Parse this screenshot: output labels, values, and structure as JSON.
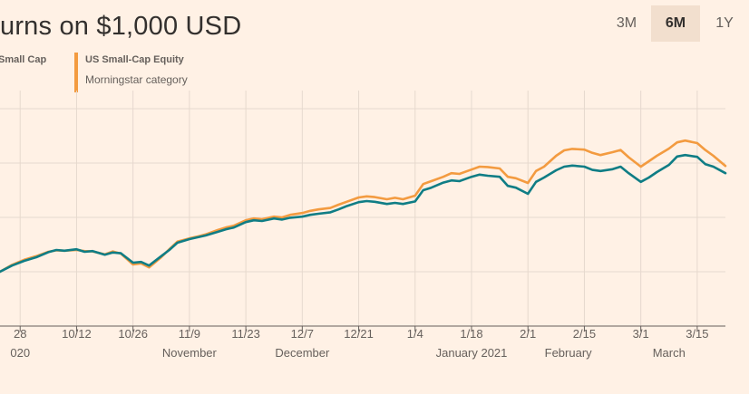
{
  "title": "urns on $1,000 USD",
  "legend": [
    {
      "name": "Small Cap",
      "sub": "",
      "color": "#0f7d85"
    },
    {
      "name": "US Small-Cap Equity",
      "sub": "Morningstar category",
      "color": "#f39b40"
    }
  ],
  "range_tabs": [
    {
      "label": "3M",
      "active": false
    },
    {
      "label": "6M",
      "active": true
    },
    {
      "label": "1Y",
      "active": false
    }
  ],
  "chart_data": {
    "type": "line",
    "x_tick_labels": [
      "28",
      "10/12",
      "10/26",
      "11/9",
      "11/23",
      "12/7",
      "12/21",
      "1/4",
      "1/18",
      "2/1",
      "2/15",
      "3/1",
      "3/15"
    ],
    "x_tick_dates": [
      "2020-09-28",
      "2020-10-12",
      "2020-10-26",
      "2020-11-09",
      "2020-11-23",
      "2020-12-07",
      "2020-12-21",
      "2021-01-04",
      "2021-01-18",
      "2021-02-01",
      "2021-02-15",
      "2021-03-01",
      "2021-03-15"
    ],
    "month_labels": [
      {
        "label": "020",
        "date": "2020-09-28"
      },
      {
        "label": "November",
        "date": "2020-11-09"
      },
      {
        "label": "December",
        "date": "2020-12-07"
      },
      {
        "label": "January 2021",
        "date": "2021-01-18"
      },
      {
        "label": "February",
        "date": "2021-02-11"
      },
      {
        "label": "March",
        "date": "2021-03-08"
      }
    ],
    "x_range": [
      "2020-09-23",
      "2021-03-22"
    ],
    "y_range": [
      850,
      1500
    ],
    "y_gridlines": [
      1000,
      1150,
      1300,
      1450
    ],
    "series": [
      {
        "name": "Small Cap",
        "color": "#0f7d85",
        "points": [
          [
            "2020-09-23",
            1000
          ],
          [
            "2020-09-26",
            1017
          ],
          [
            "2020-09-29",
            1030
          ],
          [
            "2020-10-02",
            1040
          ],
          [
            "2020-10-05",
            1054
          ],
          [
            "2020-10-07",
            1060
          ],
          [
            "2020-10-09",
            1058
          ],
          [
            "2020-10-12",
            1062
          ],
          [
            "2020-10-14",
            1055
          ],
          [
            "2020-10-16",
            1057
          ],
          [
            "2020-10-19",
            1047
          ],
          [
            "2020-10-21",
            1053
          ],
          [
            "2020-10-23",
            1051
          ],
          [
            "2020-10-26",
            1025
          ],
          [
            "2020-10-28",
            1027
          ],
          [
            "2020-10-30",
            1017
          ],
          [
            "2020-11-02",
            1043
          ],
          [
            "2020-11-04",
            1060
          ],
          [
            "2020-11-06",
            1080
          ],
          [
            "2020-11-09",
            1090
          ],
          [
            "2020-11-11",
            1095
          ],
          [
            "2020-11-13",
            1100
          ],
          [
            "2020-11-16",
            1110
          ],
          [
            "2020-11-18",
            1117
          ],
          [
            "2020-11-20",
            1122
          ],
          [
            "2020-11-23",
            1137
          ],
          [
            "2020-11-25",
            1142
          ],
          [
            "2020-11-27",
            1140
          ],
          [
            "2020-11-30",
            1147
          ],
          [
            "2020-12-02",
            1144
          ],
          [
            "2020-12-04",
            1149
          ],
          [
            "2020-12-07",
            1152
          ],
          [
            "2020-12-09",
            1157
          ],
          [
            "2020-12-11",
            1160
          ],
          [
            "2020-12-14",
            1164
          ],
          [
            "2020-12-16",
            1172
          ],
          [
            "2020-12-18",
            1181
          ],
          [
            "2020-12-21",
            1192
          ],
          [
            "2020-12-23",
            1195
          ],
          [
            "2020-12-25",
            1193
          ],
          [
            "2020-12-28",
            1187
          ],
          [
            "2020-12-30",
            1190
          ],
          [
            "2021-01-01",
            1187
          ],
          [
            "2021-01-04",
            1194
          ],
          [
            "2021-01-06",
            1225
          ],
          [
            "2021-01-08",
            1232
          ],
          [
            "2021-01-11",
            1246
          ],
          [
            "2021-01-13",
            1252
          ],
          [
            "2021-01-15",
            1250
          ],
          [
            "2021-01-18",
            1262
          ],
          [
            "2021-01-20",
            1268
          ],
          [
            "2021-01-22",
            1265
          ],
          [
            "2021-01-25",
            1262
          ],
          [
            "2021-01-27",
            1237
          ],
          [
            "2021-01-29",
            1232
          ],
          [
            "2021-02-01",
            1215
          ],
          [
            "2021-02-03",
            1248
          ],
          [
            "2021-02-05",
            1260
          ],
          [
            "2021-02-08",
            1280
          ],
          [
            "2021-02-10",
            1290
          ],
          [
            "2021-02-12",
            1293
          ],
          [
            "2021-02-15",
            1290
          ],
          [
            "2021-02-17",
            1281
          ],
          [
            "2021-02-19",
            1278
          ],
          [
            "2021-02-22",
            1283
          ],
          [
            "2021-02-24",
            1290
          ],
          [
            "2021-02-26",
            1272
          ],
          [
            "2021-03-01",
            1248
          ],
          [
            "2021-03-03",
            1260
          ],
          [
            "2021-03-05",
            1275
          ],
          [
            "2021-03-08",
            1295
          ],
          [
            "2021-03-10",
            1318
          ],
          [
            "2021-03-12",
            1322
          ],
          [
            "2021-03-15",
            1317
          ],
          [
            "2021-03-17",
            1297
          ],
          [
            "2021-03-19",
            1290
          ],
          [
            "2021-03-22",
            1272
          ]
        ]
      },
      {
        "name": "US Small-Cap Equity",
        "color": "#f39b40",
        "points": [
          [
            "2020-09-23",
            1000
          ],
          [
            "2020-09-26",
            1019
          ],
          [
            "2020-09-29",
            1033
          ],
          [
            "2020-10-02",
            1043
          ],
          [
            "2020-10-05",
            1055
          ],
          [
            "2020-10-07",
            1059
          ],
          [
            "2020-10-09",
            1058
          ],
          [
            "2020-10-12",
            1060
          ],
          [
            "2020-10-14",
            1057
          ],
          [
            "2020-10-16",
            1056
          ],
          [
            "2020-10-19",
            1048
          ],
          [
            "2020-10-21",
            1056
          ],
          [
            "2020-10-23",
            1050
          ],
          [
            "2020-10-26",
            1020
          ],
          [
            "2020-10-28",
            1023
          ],
          [
            "2020-10-30",
            1012
          ],
          [
            "2020-11-02",
            1040
          ],
          [
            "2020-11-04",
            1062
          ],
          [
            "2020-11-06",
            1083
          ],
          [
            "2020-11-09",
            1092
          ],
          [
            "2020-11-11",
            1097
          ],
          [
            "2020-11-13",
            1103
          ],
          [
            "2020-11-16",
            1115
          ],
          [
            "2020-11-18",
            1122
          ],
          [
            "2020-11-20",
            1127
          ],
          [
            "2020-11-23",
            1142
          ],
          [
            "2020-11-25",
            1147
          ],
          [
            "2020-11-27",
            1145
          ],
          [
            "2020-11-30",
            1152
          ],
          [
            "2020-12-02",
            1150
          ],
          [
            "2020-12-04",
            1157
          ],
          [
            "2020-12-07",
            1162
          ],
          [
            "2020-12-09",
            1168
          ],
          [
            "2020-12-11",
            1172
          ],
          [
            "2020-12-14",
            1176
          ],
          [
            "2020-12-16",
            1185
          ],
          [
            "2020-12-18",
            1193
          ],
          [
            "2020-12-21",
            1205
          ],
          [
            "2020-12-23",
            1208
          ],
          [
            "2020-12-25",
            1206
          ],
          [
            "2020-12-28",
            1200
          ],
          [
            "2020-12-30",
            1204
          ],
          [
            "2021-01-01",
            1200
          ],
          [
            "2021-01-04",
            1210
          ],
          [
            "2021-01-06",
            1242
          ],
          [
            "2021-01-08",
            1250
          ],
          [
            "2021-01-11",
            1262
          ],
          [
            "2021-01-13",
            1272
          ],
          [
            "2021-01-15",
            1270
          ],
          [
            "2021-01-18",
            1282
          ],
          [
            "2021-01-20",
            1290
          ],
          [
            "2021-01-22",
            1289
          ],
          [
            "2021-01-25",
            1285
          ],
          [
            "2021-01-27",
            1262
          ],
          [
            "2021-01-29",
            1258
          ],
          [
            "2021-02-01",
            1245
          ],
          [
            "2021-02-03",
            1278
          ],
          [
            "2021-02-05",
            1290
          ],
          [
            "2021-02-08",
            1320
          ],
          [
            "2021-02-10",
            1335
          ],
          [
            "2021-02-12",
            1339
          ],
          [
            "2021-02-15",
            1337
          ],
          [
            "2021-02-17",
            1328
          ],
          [
            "2021-02-19",
            1322
          ],
          [
            "2021-02-22",
            1330
          ],
          [
            "2021-02-24",
            1336
          ],
          [
            "2021-02-26",
            1316
          ],
          [
            "2021-03-01",
            1290
          ],
          [
            "2021-03-03",
            1305
          ],
          [
            "2021-03-05",
            1320
          ],
          [
            "2021-03-08",
            1340
          ],
          [
            "2021-03-10",
            1357
          ],
          [
            "2021-03-12",
            1362
          ],
          [
            "2021-03-15",
            1355
          ],
          [
            "2021-03-17",
            1336
          ],
          [
            "2021-03-19",
            1320
          ],
          [
            "2021-03-22",
            1292
          ]
        ]
      }
    ]
  }
}
